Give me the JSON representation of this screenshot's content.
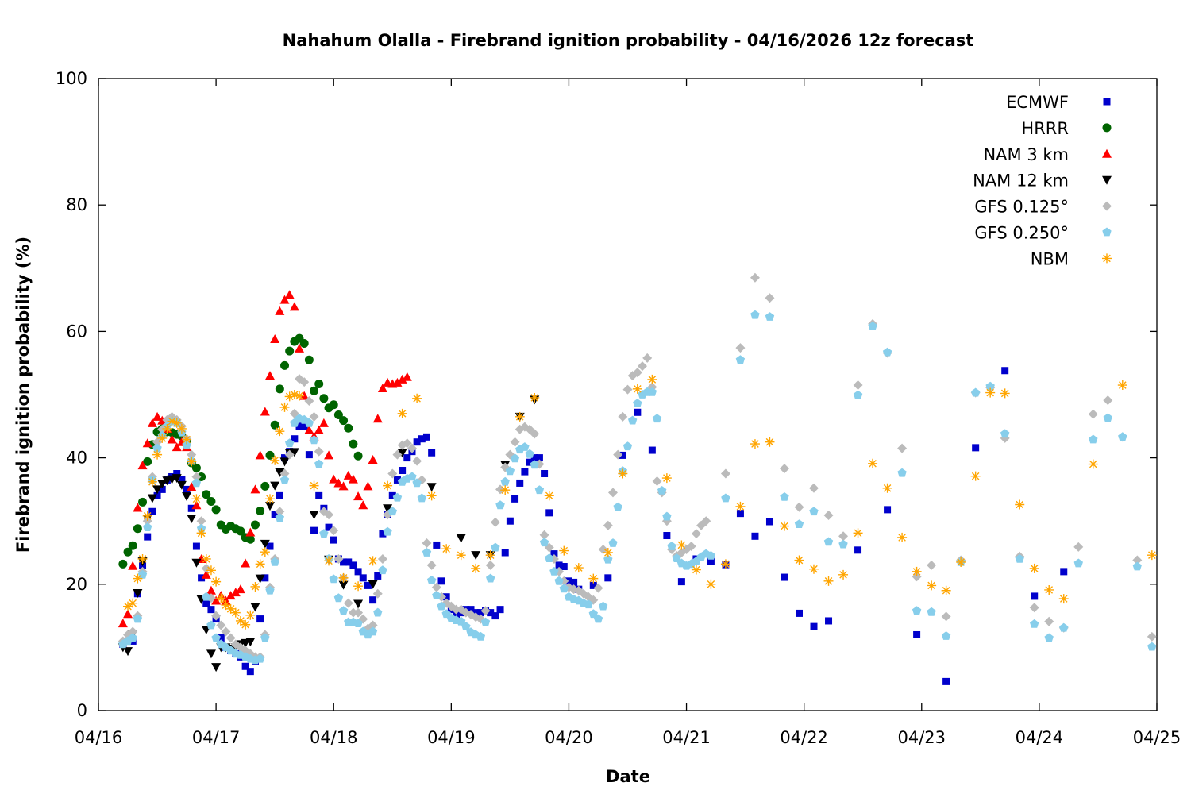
{
  "chart_data": {
    "type": "scatter",
    "title": "Nahahum Olalla - Firebrand ignition probability - 04/16/2026 12z forecast",
    "xlabel": "Date",
    "ylabel": "Firebrand ignition probability (%)",
    "x_units": "hours since 04/16 00:00",
    "xlim": [
      0,
      216
    ],
    "ylim": [
      0,
      100
    ],
    "yticks": [
      0,
      20,
      40,
      60,
      80,
      100
    ],
    "xticks": [
      {
        "hour": 0,
        "label": "04/16"
      },
      {
        "hour": 24,
        "label": "04/17"
      },
      {
        "hour": 48,
        "label": "04/18"
      },
      {
        "hour": 72,
        "label": "04/19"
      },
      {
        "hour": 96,
        "label": "04/20"
      },
      {
        "hour": 120,
        "label": "04/21"
      },
      {
        "hour": 144,
        "label": "04/22"
      },
      {
        "hour": 168,
        "label": "04/23"
      },
      {
        "hour": 192,
        "label": "04/24"
      },
      {
        "hour": 216,
        "label": "04/25"
      }
    ],
    "grid": false,
    "legend_position": "top-right",
    "series": [
      {
        "name": "ECMWF",
        "marker": "square",
        "color": "#0000cc",
        "segments": [
          {
            "start": 5,
            "step": 1,
            "values": [
              10.5,
              11,
              11,
              18.5,
              23,
              27.5,
              31.5,
              34,
              35,
              36.5,
              37,
              37.5,
              36.5,
              35,
              32,
              26,
              21,
              17,
              16,
              14.5,
              11.5,
              10,
              9.5,
              9,
              8.5,
              7,
              6.2,
              7.8,
              14.5,
              21,
              26,
              31,
              34,
              40,
              41,
              43,
              45,
              45,
              40.5,
              28.5,
              34,
              32,
              29,
              27,
              24,
              23.5,
              23.5,
              23,
              22,
              21,
              19.8,
              17.5,
              21.3,
              28,
              31,
              34,
              36.5,
              38,
              40,
              41,
              42.5,
              43,
              43.3,
              40.8,
              26.2,
              20.5,
              18,
              16,
              15,
              15.5,
              16,
              16,
              15.5,
              15.5,
              15.8,
              15.5,
              15,
              16,
              25,
              30,
              33.5,
              36,
              37.8,
              39.3,
              40,
              40,
              37.5,
              31.3,
              24.8,
              23,
              22.8,
              20.5,
              20.3,
              19.2
            ]
          },
          {
            "start": 101,
            "step": 3,
            "values": [
              19.8,
              21,
              40.4,
              47.2,
              41.2,
              27.7,
              20.4,
              24,
              23.6,
              23.1,
              31.2,
              27.6,
              29.9,
              21.1,
              15.4,
              13.3,
              14.2
            ]
          },
          {
            "start": 155,
            "step": 6,
            "values": [
              25.4,
              31.8,
              12.0,
              4.6,
              41.6,
              53.8,
              18.1,
              22.0
            ]
          }
        ]
      },
      {
        "name": "HRRR",
        "marker": "circle",
        "color": "#006400",
        "segments": [
          {
            "start": 5,
            "step": 1,
            "values": [
              23.2,
              25.1,
              26.1,
              28.8,
              33.0,
              39.4,
              42.1,
              44.1,
              44.6,
              44.1,
              44.0,
              43.7,
              43.4,
              42.7,
              39.2,
              38.4,
              37.0,
              34.2,
              33.1,
              31.8,
              29.4,
              28.7,
              29.2,
              28.8,
              28.4,
              27.4,
              27.1,
              29.4,
              31.6,
              35.5,
              40.4,
              45.2,
              50.9,
              54.6,
              56.9,
              58.4,
              58.9,
              58.1,
              55.5,
              50.6,
              51.7,
              49.4,
              47.9,
              48.4,
              46.8,
              45.9,
              44.7,
              42.2,
              40.3
            ]
          }
        ]
      },
      {
        "name": "NAM 3 km",
        "marker": "triangle-up",
        "color": "#ff0000",
        "segments": [
          {
            "start": 5,
            "step": 1,
            "values": [
              13.8,
              15.3,
              22.9,
              32.1,
              38.8,
              42.3,
              45.5,
              46.5,
              45.9,
              44.6,
              42.9,
              41.7,
              42.5,
              41.7,
              35.4,
              32.5,
              24.0,
              21.5,
              19.0,
              17.4,
              18.2,
              17.4,
              18.2,
              18.7,
              19.2,
              23.3,
              28.2,
              35.0,
              40.4,
              47.3,
              53.0,
              58.8,
              63.2,
              65.0,
              65.8,
              63.9,
              57.3,
              49.8,
              44.4,
              43.4,
              44.4,
              45.5,
              40.4,
              36.6,
              36.0,
              35.5,
              37.2,
              36.6,
              33.9,
              32.5,
              35.5,
              39.7,
              46.2,
              51.0,
              51.9,
              51.7,
              51.9,
              52.4,
              52.8
            ]
          }
        ]
      },
      {
        "name": "NAM 12 km",
        "marker": "triangle-down",
        "color": "#000000",
        "segments": [
          {
            "start": 5,
            "step": 1,
            "values": [
              10.0,
              9.4,
              12.1,
              18.6,
              23.6,
              30.4,
              33.6,
              35.0,
              35.9,
              36.4,
              36.6,
              36.8,
              35.7,
              33.9,
              30.4,
              23.4,
              17.6,
              12.8,
              9.0,
              6.9,
              10.0,
              10.0,
              9.8,
              10.0,
              10.5,
              10.7,
              10.9,
              16.4,
              20.9,
              26.4,
              32.4,
              35.6,
              37.7,
              39.4,
              40.8,
              40.9
            ]
          }
        ],
        "points": [
          [
            44,
            31.0
          ],
          [
            47,
            23.9
          ],
          [
            50,
            19.9
          ],
          [
            53,
            16.9
          ],
          [
            56,
            20.0
          ],
          [
            59,
            32.0
          ],
          [
            62,
            40.8
          ],
          [
            68,
            35.4
          ],
          [
            74,
            27.3
          ],
          [
            77,
            24.6
          ],
          [
            80,
            24.6
          ],
          [
            83,
            38.9
          ],
          [
            86,
            46.5
          ],
          [
            89,
            49.2
          ]
        ]
      },
      {
        "name": "GFS 0.125°",
        "marker": "diamond",
        "color": "#bbbbbb",
        "segments": [
          {
            "start": 5,
            "step": 1,
            "values": [
              11,
              12,
              12.5,
              15,
              22,
              30,
              37,
              42.5,
              44.5,
              46,
              46.5,
              46,
              45,
              43,
              40.5,
              37,
              30,
              22.5,
              17.8,
              15,
              13.5,
              12.5,
              11.5,
              10.5,
              10,
              9.5,
              9,
              8.5,
              8.5,
              12,
              19.5,
              24,
              31.5,
              37.5,
              40.5,
              47,
              52.5,
              52,
              49,
              46.5,
              41,
              31.5,
              31,
              28.5,
              24,
              21,
              17,
              15.5,
              15.5,
              14.5,
              13,
              13.5,
              18.5,
              24,
              31,
              37.5,
              40.5,
              42,
              42.3,
              41.5,
              39.5,
              36.5,
              26.5,
              23,
              19.5,
              18,
              17,
              16.5,
              16,
              16,
              15.5,
              15.2,
              14.8,
              14.5,
              15.8,
              23,
              29.8,
              35,
              38.5,
              40.5,
              42.5,
              44.5,
              44.9,
              44.5,
              43.8,
              39,
              27.8,
              25.8,
              24,
              22,
              20.5,
              19.5,
              19.2,
              19,
              18.5,
              18,
              17.5,
              19.4,
              25.5,
              29.3,
              34.5,
              40.5,
              46.5,
              50.8,
              53,
              53.5,
              54.5,
              55.8,
              51.2,
              36.3,
              34.5,
              30,
              25.5,
              24.5,
              25,
              25.5,
              26,
              28,
              29.3,
              30
            ]
          },
          {
            "start": 128,
            "step": 3,
            "values": [
              37.5,
              57.4,
              68.5,
              65.3,
              38.3,
              32.2,
              35.2,
              30.9,
              27.6,
              51.5,
              61.2,
              56.6,
              41.5,
              21.2,
              23.0,
              14.9,
              23.8,
              50.3,
              51.1,
              43.1,
              24.4,
              16.3,
              14.1,
              13.1,
              25.9,
              46.9,
              49.1,
              43.3,
              23.8,
              11.7
            ]
          }
        ]
      },
      {
        "name": "GFS 0.250°",
        "marker": "pentagon",
        "color": "#87ceeb",
        "segments": [
          {
            "start": 5,
            "step": 1,
            "values": [
              10.5,
              11,
              11.5,
              14.5,
              21.5,
              29,
              36.5,
              41.5,
              43.5,
              45,
              45.8,
              45.5,
              44,
              42,
              39.5,
              36,
              28.8,
              18,
              13.5,
              11.5,
              10.5,
              10,
              9.5,
              9,
              8.8,
              8.5,
              8.2,
              8,
              8.2,
              11.5,
              19,
              23.5,
              30.5,
              36.5,
              42.3,
              45.5,
              46.2,
              46,
              45.5,
              42.8,
              39,
              28,
              24,
              20.8,
              17.8,
              15.8,
              14,
              14,
              13.8,
              12.5,
              12,
              12.5,
              15.5,
              22.2,
              28.3,
              31.5,
              33.7,
              36.2,
              36.7,
              37,
              36.0,
              33.6,
              25.0,
              20.6,
              18.2,
              16.5,
              15.3,
              14.6,
              14.3,
              14.1,
              13.3,
              12.4,
              12.0,
              11.7,
              14.0,
              20.9,
              25.8,
              32.5,
              36.2,
              37.9,
              39.9,
              41.3,
              41.7,
              40.6,
              38.9,
              34.9,
              26.6,
              24.1,
              22.0,
              20.5,
              19.3,
              18.0,
              17.6,
              17.4,
              17.0,
              16.8,
              15.3,
              14.5,
              16.5,
              23.9,
              26.5,
              32.2,
              37.9,
              41.8,
              45.9,
              48.6,
              50.0,
              50.4,
              50.4,
              46.2,
              34.8,
              30.7,
              26.0,
              24.1,
              23.3,
              22.9,
              23.2,
              23.6,
              24.3,
              24.8,
              24.5
            ]
          },
          {
            "start": 128,
            "step": 3,
            "values": [
              33.6,
              55.5,
              62.6,
              62.3,
              33.8,
              29.5,
              31.5,
              26.7,
              26.3,
              49.9,
              60.8,
              56.7,
              37.6,
              15.8,
              15.6,
              11.8,
              23.5,
              50.3,
              51.3,
              43.8,
              24.0,
              13.7,
              11.5,
              13.1,
              23.3,
              42.9,
              46.3,
              43.3,
              22.8,
              10.1
            ]
          }
        ]
      },
      {
        "name": "NBM",
        "marker": "star",
        "color": "#ffa500",
        "segments": [
          {
            "start": 6,
            "step": 1,
            "values": [
              16.5,
              17.0,
              20.9,
              24.0,
              30.8,
              36.2,
              40.5,
              43.1,
              44.6,
              45.8,
              45.5,
              44.6,
              42.9,
              39.4,
              33.5,
              28.1,
              24.0,
              22.2,
              20.4,
              17.8,
              16.7,
              16.1,
              15.5,
              14.2,
              13.6,
              15.1,
              19.6,
              23.2,
              25.1,
              33.5,
              39.6,
              44.2,
              48.0,
              49.7,
              50.0,
              49.8
            ]
          },
          {
            "start": 44,
            "step": 3,
            "values": [
              35.6,
              23.7,
              21.0,
              19.7,
              23.7,
              35.6,
              47.0,
              49.4,
              34.0,
              25.6,
              24.6,
              22.5,
              24.6,
              34.9,
              46.5,
              49.5,
              34.0,
              25.3,
              22.6,
              20.9,
              25.0,
              37.5,
              50.9,
              52.4,
              36.8,
              26.2,
              22.3,
              20.0,
              23.2,
              32.3,
              42.2,
              42.5,
              29.2,
              23.8,
              22.4,
              20.5,
              21.5,
              28.1,
              39.1,
              35.2,
              27.4,
              22.0,
              19.8,
              19.0,
              23.5,
              37.1,
              50.3,
              50.2,
              32.6,
              22.5,
              19.1,
              17.7,
              null,
              39.0,
              null,
              51.5,
              null,
              24.6
            ]
          }
        ]
      }
    ]
  }
}
